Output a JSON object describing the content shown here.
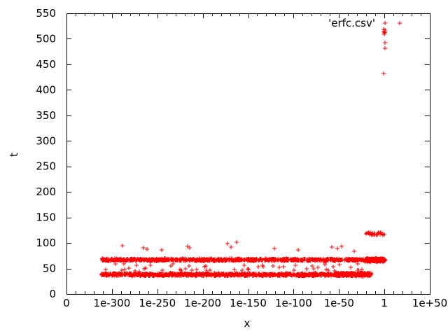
{
  "figure": {
    "background": "#ffffff",
    "axis_color": "#000000",
    "marker_color": "#ff0000"
  },
  "chart_data": {
    "type": "scatter",
    "title": "",
    "xlabel": "x",
    "ylabel": "t",
    "legend": {
      "label": "'erfc.csv'",
      "marker": "plus",
      "position": "top-right"
    },
    "marker": "plus",
    "color": "#ff0000",
    "grid": false,
    "x_axis": {
      "scale": "log10",
      "log10_min": -350,
      "log10_max": 50,
      "ticks": [
        {
          "label": "0",
          "log10": -350
        },
        {
          "label": "1e-300",
          "log10": -300
        },
        {
          "label": "1e-250",
          "log10": -250
        },
        {
          "label": "1e-200",
          "log10": -200
        },
        {
          "label": "1e-150",
          "log10": -150
        },
        {
          "label": "1e-100",
          "log10": -100
        },
        {
          "label": "1e-50",
          "log10": -50
        },
        {
          "label": "1",
          "log10": 0
        },
        {
          "label": "1e+50",
          "log10": 50
        }
      ],
      "minor_decade_step": 10
    },
    "y_axis": {
      "min": 0,
      "max": 550,
      "tick_step": 50,
      "tick_labels": [
        "0",
        "50",
        "100",
        "150",
        "200",
        "250",
        "300",
        "350",
        "400",
        "450",
        "500",
        "550"
      ]
    },
    "seed": 20071,
    "bands": [
      {
        "name": "fast-band",
        "log10x": [
          -311.5,
          -14.2
        ],
        "t_center": 38.0,
        "t_spread": 3.2,
        "dist": "tri",
        "count": 1150
      },
      {
        "name": "fast-band-tail",
        "log10x": [
          -52.0,
          -14.2
        ],
        "t_center": 38.5,
        "t_spread": 4.0,
        "dist": "tri",
        "count": 180
      },
      {
        "name": "slow-band",
        "log10x": [
          -311.5,
          -0.2
        ],
        "t_center": 67.0,
        "t_spread": 2.8,
        "dist": "tri",
        "count": 1000
      },
      {
        "name": "slow-band-tail",
        "log10x": [
          -21.0,
          0.3
        ],
        "t_center": 66.5,
        "t_spread": 4.0,
        "dist": "tri",
        "count": 260
      },
      {
        "name": "mid-scatter",
        "log10x": [
          -308.0,
          -16.0
        ],
        "t_center": 52.0,
        "t_spread": 8.0,
        "dist": "uni",
        "count": 55
      },
      {
        "name": "cluster-117",
        "log10x": [
          -20.3,
          0.2
        ],
        "t_center": 117.5,
        "t_spread": 3.0,
        "dist": "uni",
        "count": 26
      }
    ],
    "outliers_log10x_t": [
      [
        -288,
        95
      ],
      [
        -265,
        90
      ],
      [
        -261,
        88
      ],
      [
        -245,
        86
      ],
      [
        -217,
        93
      ],
      [
        -214,
        91
      ],
      [
        -173,
        99
      ],
      [
        -169,
        92
      ],
      [
        -163,
        102
      ],
      [
        -121,
        89
      ],
      [
        -95,
        86
      ],
      [
        -58,
        92
      ],
      [
        -52,
        89
      ],
      [
        -47,
        93
      ],
      [
        -33,
        83
      ],
      [
        0.7,
        531
      ],
      [
        -0.5,
        519
      ],
      [
        0.3,
        517
      ],
      [
        -0.8,
        515
      ],
      [
        0.5,
        513
      ],
      [
        -0.1,
        511
      ],
      [
        0.1,
        509
      ],
      [
        0.6,
        492
      ],
      [
        0.7,
        481
      ],
      [
        -0.9,
        432
      ]
    ]
  }
}
